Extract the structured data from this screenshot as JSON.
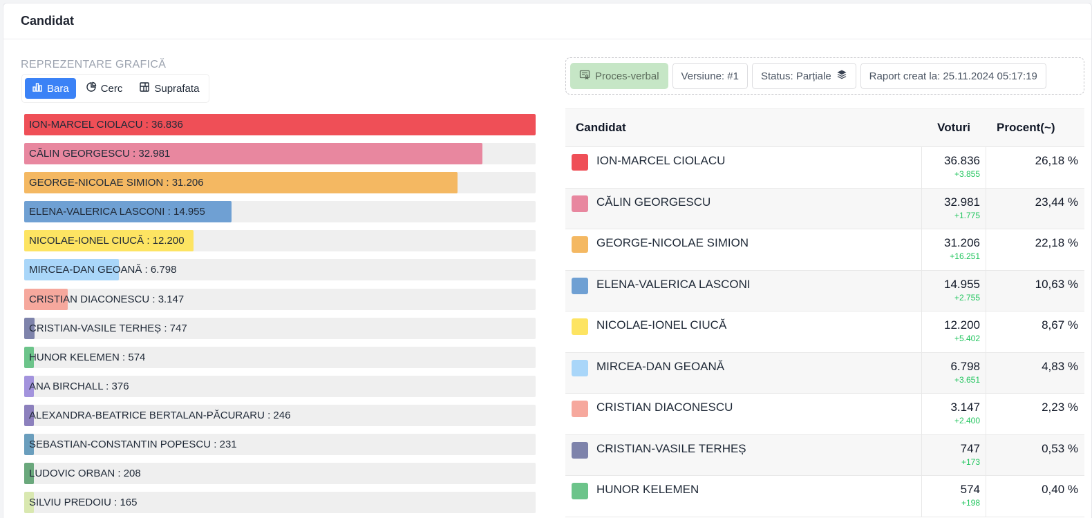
{
  "header": {
    "title": "Candidat"
  },
  "chart_section": {
    "label": "REPREZENTARE GRAFICĂ",
    "tabs": [
      {
        "label": "Bara",
        "icon": "bar-chart-icon",
        "active": true
      },
      {
        "label": "Cerc",
        "icon": "pie-chart-icon",
        "active": false
      },
      {
        "label": "Suprafata",
        "icon": "treemap-icon",
        "active": false
      }
    ]
  },
  "chart_data": {
    "type": "bar",
    "categories": [
      "ION-MARCEL CIOLACU",
      "CĂLIN GEORGESCU",
      "GEORGE-NICOLAE SIMION",
      "ELENA-VALERICA LASCONI",
      "NICOLAE-IONEL CIUCĂ",
      "MIRCEA-DAN GEOANĂ",
      "CRISTIAN DIACONESCU",
      "CRISTIAN-VASILE TERHEȘ",
      "HUNOR KELEMEN",
      "ANA BIRCHALL",
      "ALEXANDRA-BEATRICE BERTALAN-PĂCURARU",
      "SEBASTIAN-CONSTANTIN POPESCU",
      "LUDOVIC ORBAN",
      "SILVIU PREDOIU"
    ],
    "values": [
      36836,
      32981,
      31206,
      14955,
      12200,
      6798,
      3147,
      747,
      574,
      376,
      246,
      231,
      208,
      165
    ],
    "value_labels": [
      "36.836",
      "32.981",
      "31.206",
      "14.955",
      "12.200",
      "6.798",
      "3.147",
      "747",
      "574",
      "376",
      "246",
      "231",
      "208",
      "165"
    ],
    "colors": [
      "#ef4f57",
      "#e8879f",
      "#f4b862",
      "#6fa0d3",
      "#fde462",
      "#a9d6f9",
      "#f6a89d",
      "#7e83ab",
      "#6cc48a",
      "#a393dd",
      "#8c80bd",
      "#6a9ebd",
      "#6aa87c",
      "#d9e8b0"
    ],
    "xlim": [
      0,
      36836
    ],
    "grid": false,
    "legend": "none"
  },
  "meta": {
    "proces_verbal": "Proces-verbal",
    "versiune": "Versiune: #1",
    "status": "Status: Parțiale",
    "raport": "Raport creat la: 25.11.2024 05:17:19"
  },
  "table": {
    "headers": {
      "name": "Candidat",
      "votes": "Voturi",
      "pct": "Procent(~)"
    },
    "rows": [
      {
        "name": "ION-MARCEL CIOLACU",
        "votes": "36.836",
        "delta": "+3.855",
        "pct": "26,18 %",
        "color": "#ef4f57"
      },
      {
        "name": "CĂLIN GEORGESCU",
        "votes": "32.981",
        "delta": "+1.775",
        "pct": "23,44 %",
        "color": "#e8879f"
      },
      {
        "name": "GEORGE-NICOLAE SIMION",
        "votes": "31.206",
        "delta": "+16.251",
        "pct": "22,18 %",
        "color": "#f4b862"
      },
      {
        "name": "ELENA-VALERICA LASCONI",
        "votes": "14.955",
        "delta": "+2.755",
        "pct": "10,63 %",
        "color": "#6fa0d3"
      },
      {
        "name": "NICOLAE-IONEL CIUCĂ",
        "votes": "12.200",
        "delta": "+5.402",
        "pct": "8,67 %",
        "color": "#fde462"
      },
      {
        "name": "MIRCEA-DAN GEOANĂ",
        "votes": "6.798",
        "delta": "+3.651",
        "pct": "4,83 %",
        "color": "#a9d6f9"
      },
      {
        "name": "CRISTIAN DIACONESCU",
        "votes": "3.147",
        "delta": "+2.400",
        "pct": "2,23 %",
        "color": "#f6a89d"
      },
      {
        "name": "CRISTIAN-VASILE TERHEȘ",
        "votes": "747",
        "delta": "+173",
        "pct": "0,53 %",
        "color": "#7e83ab"
      },
      {
        "name": "HUNOR KELEMEN",
        "votes": "574",
        "delta": "+198",
        "pct": "0,40 %",
        "color": "#6cc48a"
      }
    ]
  }
}
